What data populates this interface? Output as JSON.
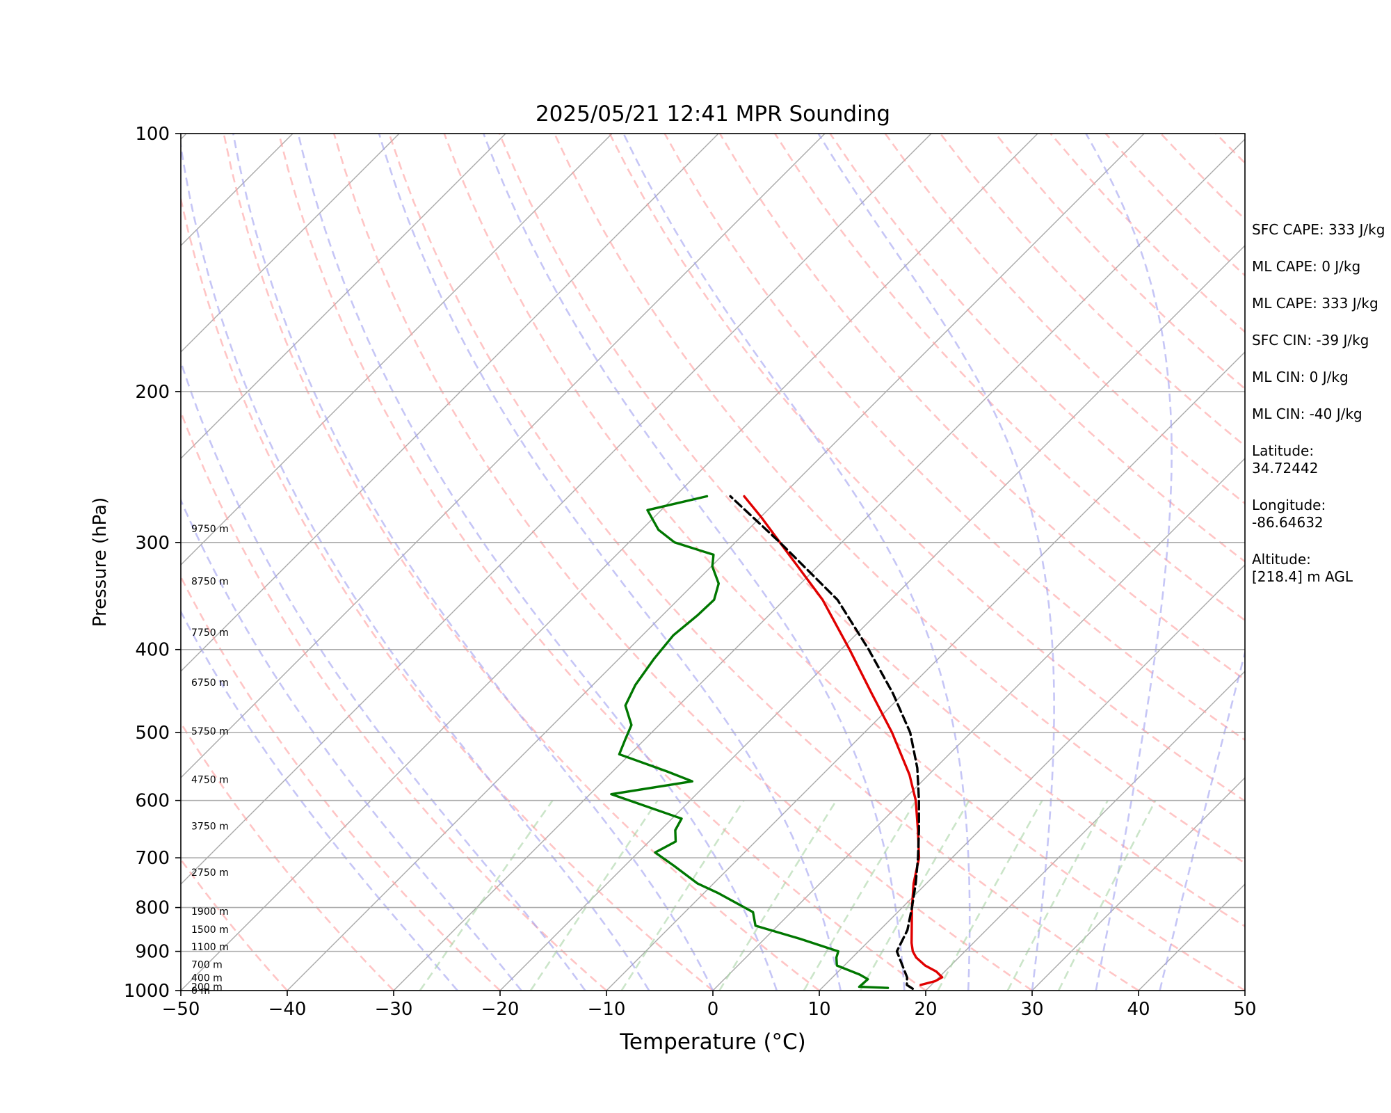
{
  "chart_data": {
    "type": "line",
    "title": "2025/05/21 12:41 MPR Sounding",
    "xlabel": "Temperature (°C)",
    "ylabel": "Pressure (hPa)",
    "xlim": [
      -50,
      50
    ],
    "ylim": [
      1000,
      100
    ],
    "y_scale": "log",
    "skew": "skew-T (isotherms slanted 45°)",
    "grid": true,
    "x_ticks": [
      "−50",
      "−40",
      "−30",
      "−20",
      "−10",
      "0",
      "10",
      "20",
      "30",
      "40",
      "50"
    ],
    "x_tick_values": [
      -50,
      -40,
      -30,
      -20,
      -10,
      0,
      10,
      20,
      30,
      40,
      50
    ],
    "y_ticks": [
      "100",
      "200",
      "300",
      "400",
      "500",
      "600",
      "700",
      "800",
      "900",
      "1000"
    ],
    "y_tick_values": [
      100,
      200,
      300,
      400,
      500,
      600,
      700,
      800,
      900,
      1000
    ],
    "series": [
      {
        "id": "temperature",
        "color": "#e00000",
        "style": "solid",
        "points": [
          [
            985,
            19.0
          ],
          [
            975,
            20.0
          ],
          [
            965,
            20.3
          ],
          [
            950,
            19.2
          ],
          [
            935,
            17.6
          ],
          [
            915,
            16.0
          ],
          [
            900,
            15.1
          ],
          [
            880,
            14.2
          ],
          [
            850,
            13.0
          ],
          [
            800,
            10.9
          ],
          [
            750,
            8.8
          ],
          [
            700,
            6.9
          ],
          [
            650,
            4.2
          ],
          [
            600,
            1.2
          ],
          [
            560,
            -1.8
          ],
          [
            500,
            -7.4
          ],
          [
            450,
            -13.0
          ],
          [
            400,
            -19.2
          ],
          [
            350,
            -26.4
          ],
          [
            300,
            -35.8
          ],
          [
            280,
            -40.0
          ],
          [
            265,
            -43.5
          ]
        ]
      },
      {
        "id": "dewpoint",
        "color": "#007700",
        "style": "solid",
        "points": [
          [
            993,
            16.2
          ],
          [
            990,
            13.4
          ],
          [
            970,
            13.5
          ],
          [
            958,
            12.3
          ],
          [
            935,
            9.3
          ],
          [
            915,
            8.5
          ],
          [
            900,
            8.1
          ],
          [
            870,
            3.3
          ],
          [
            840,
            -2.1
          ],
          [
            810,
            -3.6
          ],
          [
            770,
            -8.6
          ],
          [
            750,
            -11.5
          ],
          [
            715,
            -15.4
          ],
          [
            690,
            -18.4
          ],
          [
            670,
            -17.5
          ],
          [
            650,
            -18.6
          ],
          [
            630,
            -19.1
          ],
          [
            590,
            -28.0
          ],
          [
            570,
            -21.6
          ],
          [
            555,
            -24.9
          ],
          [
            530,
            -31.0
          ],
          [
            510,
            -31.8
          ],
          [
            490,
            -32.6
          ],
          [
            465,
            -35.0
          ],
          [
            440,
            -36.0
          ],
          [
            410,
            -36.7
          ],
          [
            385,
            -37.1
          ],
          [
            365,
            -36.7
          ],
          [
            350,
            -36.6
          ],
          [
            335,
            -37.7
          ],
          [
            320,
            -39.9
          ],
          [
            310,
            -40.9
          ],
          [
            300,
            -45.7
          ],
          [
            290,
            -48.4
          ],
          [
            275,
            -51.3
          ],
          [
            265,
            -47.0
          ]
        ]
      },
      {
        "id": "parcel",
        "color": "#000000",
        "style": "dashed",
        "points": [
          [
            995,
            18.6
          ],
          [
            985,
            17.7
          ],
          [
            965,
            17.0
          ],
          [
            900,
            13.6
          ],
          [
            850,
            12.6
          ],
          [
            800,
            10.9
          ],
          [
            750,
            9.0
          ],
          [
            700,
            6.8
          ],
          [
            650,
            4.3
          ],
          [
            600,
            1.5
          ],
          [
            550,
            -1.7
          ],
          [
            500,
            -5.7
          ],
          [
            450,
            -11.0
          ],
          [
            400,
            -17.4
          ],
          [
            350,
            -25.0
          ],
          [
            300,
            -35.8
          ],
          [
            265,
            -44.8
          ]
        ]
      }
    ],
    "height_labels": [
      {
        "text": "0 m",
        "p": 1000
      },
      {
        "text": "200 m",
        "p": 990
      },
      {
        "text": "400 m",
        "p": 966
      },
      {
        "text": "700 m",
        "p": 932
      },
      {
        "text": "1100 m",
        "p": 889
      },
      {
        "text": "1500 m",
        "p": 848
      },
      {
        "text": "1900 m",
        "p": 808
      },
      {
        "text": "2750 m",
        "p": 728
      },
      {
        "text": "3750 m",
        "p": 643
      },
      {
        "text": "4750 m",
        "p": 567
      },
      {
        "text": "5750 m",
        "p": 498
      },
      {
        "text": "6750 m",
        "p": 437
      },
      {
        "text": "7750 m",
        "p": 382
      },
      {
        "text": "8750 m",
        "p": 333
      },
      {
        "text": "9750 m",
        "p": 289
      }
    ],
    "colors": {
      "isotherms": "#aaaaaa",
      "dry_adiabats": "#ff9f9f",
      "moist_adiabats": "#a0a0f0",
      "mixing_ratio": "#a9d4a5",
      "isobars": "#aaaaaa"
    }
  },
  "stats": {
    "sfc_cape": "SFC CAPE: 333 J/kg",
    "ml_cape_1": "ML CAPE: 0 J/kg",
    "ml_cape_2": "ML CAPE: 333 J/kg",
    "sfc_cin": "SFC CIN: -39 J/kg",
    "ml_cin_1": "ML CIN: 0 J/kg",
    "ml_cin_2": "ML CIN: -40 J/kg",
    "latitude_label": "Latitude:",
    "latitude_value": "34.72442",
    "longitude_label": "Longitude:",
    "longitude_value": "-86.64632",
    "altitude_label": "Altitude:",
    "altitude_value": "[218.4] m AGL"
  }
}
